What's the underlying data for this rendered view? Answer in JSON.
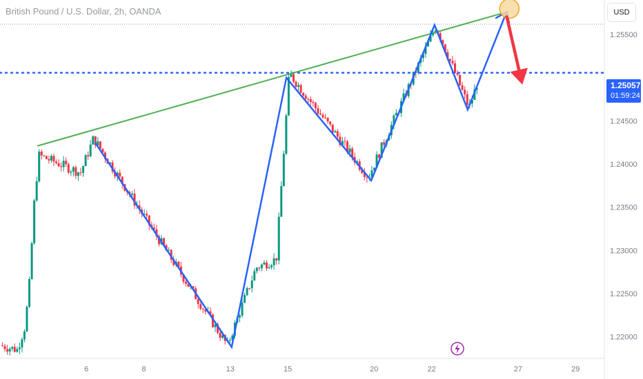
{
  "header": {
    "symbol_title": "British Pound / U.S. Dollar, 2h, OANDA",
    "currency_label": "USD"
  },
  "price_tag": {
    "price": "1.25057",
    "countdown": "01:59:24"
  },
  "colors": {
    "up": "#089981",
    "down": "#f23645",
    "zigzag": "#2962ff",
    "trendline": "#4caf50",
    "arrow": "#f23645",
    "circle_fill": "#f7d9a0",
    "circle_stroke": "#f5a623",
    "price_line": "#2962ff",
    "axis_text": "#787b86",
    "event_icon": "#9c27b0"
  },
  "chart_data": {
    "type": "candlestick",
    "instrument": "British Pound / U.S. Dollar",
    "interval": "2h",
    "source": "OANDA",
    "ylim": [
      1.2175,
      1.259
    ],
    "y_ticks": [
      1.22,
      1.225,
      1.23,
      1.235,
      1.24,
      1.245,
      1.25,
      1.255
    ],
    "y_tick_labels": [
      "1.22000",
      "1.22500",
      "1.23000",
      "1.23500",
      "1.24000",
      "1.24500",
      "",
      "1.25500"
    ],
    "x_ticks": [
      {
        "label": "6",
        "t": 6
      },
      {
        "label": "8",
        "t": 8
      },
      {
        "label": "13",
        "t": 11
      },
      {
        "label": "15",
        "t": 13
      },
      {
        "label": "20",
        "t": 16
      },
      {
        "label": "22",
        "t": 18
      },
      {
        "label": "27",
        "t": 21
      },
      {
        "label": "29",
        "t": 23
      }
    ],
    "last_price": 1.25057,
    "key_points": [
      {
        "t": 4.35,
        "price": 1.241
      },
      {
        "t": 5.8,
        "price": 1.239
      },
      {
        "t": 6.25,
        "price": 1.243
      },
      {
        "t": 10.9,
        "price": 1.219
      },
      {
        "t": 11.9,
        "price": 1.228
      },
      {
        "t": 12.6,
        "price": 1.229
      },
      {
        "t": 13.05,
        "price": 1.2505
      },
      {
        "t": 15.8,
        "price": 1.2385
      },
      {
        "t": 18.15,
        "price": 1.256
      },
      {
        "t": 19.3,
        "price": 1.2465
      },
      {
        "t": 19.65,
        "price": 1.25
      }
    ],
    "zigzag": [
      {
        "t": 6.3,
        "price": 1.2425
      },
      {
        "t": 11.05,
        "price": 1.2188
      },
      {
        "t": 12.95,
        "price": 1.25
      },
      {
        "t": 15.9,
        "price": 1.2381
      },
      {
        "t": 18.1,
        "price": 1.2561
      },
      {
        "t": 19.25,
        "price": 1.2463
      },
      {
        "t": 20.6,
        "price": 1.2576
      }
    ],
    "trendline": [
      {
        "t": 4.3,
        "price": 1.2421
      },
      {
        "t": 20.7,
        "price": 1.2577
      }
    ],
    "projection_arrow": [
      {
        "t": 20.6,
        "price": 1.2572
      },
      {
        "t": 21.15,
        "price": 1.2492
      }
    ],
    "marker_circle": {
      "t": 20.7,
      "price": 1.258
    }
  }
}
